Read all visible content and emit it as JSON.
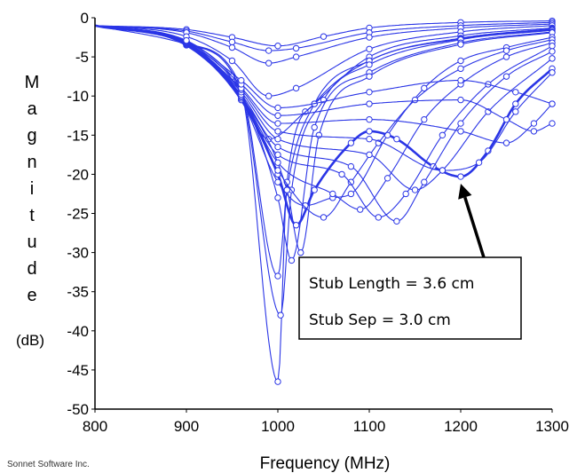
{
  "credit": "Sonnet Software Inc.",
  "colors": {
    "series": "#2a35e6",
    "axis": "#000000",
    "annotation_arrow": "#000000"
  },
  "annotation": {
    "line1": "Stub Length = 3.6 cm",
    "line2": "Stub Sep = 3.0 cm",
    "points_to": {
      "x": 1200,
      "y": -20.3
    }
  },
  "chart_data": {
    "type": "line",
    "title": "",
    "xlabel": "Frequency (MHz)",
    "ylabel": "Magnitude",
    "ylabel_unit": "(dB)",
    "xlim": [
      800,
      1300
    ],
    "ylim": [
      -50,
      0
    ],
    "xticks": [
      800,
      900,
      1000,
      1100,
      1200,
      1300
    ],
    "yticks": [
      0,
      -5,
      -10,
      -15,
      -20,
      -25,
      -30,
      -35,
      -40,
      -45,
      -50
    ],
    "grid": false,
    "legend": "none",
    "series": [
      {
        "highlight": false,
        "points": [
          [
            800,
            -1
          ],
          [
            900,
            -1.5
          ],
          [
            950,
            -2.5
          ],
          [
            1000,
            -3.6
          ],
          [
            1050,
            -2.4
          ],
          [
            1100,
            -1.3
          ],
          [
            1200,
            -0.6
          ],
          [
            1300,
            -0.4
          ]
        ]
      },
      {
        "highlight": false,
        "points": [
          [
            800,
            -1
          ],
          [
            900,
            -1.7
          ],
          [
            950,
            -3.1
          ],
          [
            990,
            -4.2
          ],
          [
            1020,
            -3.9
          ],
          [
            1100,
            -1.9
          ],
          [
            1200,
            -1
          ],
          [
            1300,
            -0.6
          ]
        ]
      },
      {
        "highlight": false,
        "points": [
          [
            800,
            -1
          ],
          [
            900,
            -1.9
          ],
          [
            950,
            -3.8
          ],
          [
            990,
            -5.8
          ],
          [
            1020,
            -5
          ],
          [
            1100,
            -2.5
          ],
          [
            1200,
            -1.3
          ],
          [
            1300,
            -0.8
          ]
        ]
      },
      {
        "highlight": false,
        "points": [
          [
            800,
            -1
          ],
          [
            900,
            -2.4
          ],
          [
            950,
            -5.5
          ],
          [
            990,
            -10
          ],
          [
            1020,
            -9
          ],
          [
            1100,
            -4
          ],
          [
            1200,
            -1.8
          ],
          [
            1300,
            -1
          ]
        ]
      },
      {
        "highlight": false,
        "points": [
          [
            800,
            -1
          ],
          [
            900,
            -3
          ],
          [
            950,
            -7.5
          ],
          [
            990,
            -15.5
          ],
          [
            1030,
            -12
          ],
          [
            1100,
            -5
          ],
          [
            1200,
            -2.3
          ],
          [
            1300,
            -1.3
          ]
        ]
      },
      {
        "highlight": false,
        "points": [
          [
            800,
            -1
          ],
          [
            900,
            -3.2
          ],
          [
            960,
            -9
          ],
          [
            1000,
            -33
          ],
          [
            1010,
            -22
          ],
          [
            1040,
            -11
          ],
          [
            1100,
            -5.5
          ],
          [
            1200,
            -2.6
          ],
          [
            1300,
            -1.4
          ]
        ]
      },
      {
        "highlight": false,
        "points": [
          [
            800,
            -1
          ],
          [
            900,
            -3.4
          ],
          [
            960,
            -9.5
          ],
          [
            1000,
            -46.5
          ],
          [
            1010,
            -21
          ],
          [
            1040,
            -11
          ],
          [
            1100,
            -5.5
          ],
          [
            1200,
            -2.7
          ],
          [
            1300,
            -1.5
          ]
        ]
      },
      {
        "highlight": false,
        "points": [
          [
            800,
            -1
          ],
          [
            900,
            -3.3
          ],
          [
            960,
            -9.5
          ],
          [
            1003,
            -38
          ],
          [
            1015,
            -22
          ],
          [
            1050,
            -10.5
          ],
          [
            1100,
            -6
          ],
          [
            1200,
            -2.8
          ],
          [
            1300,
            -1.6
          ]
        ]
      },
      {
        "highlight": false,
        "points": [
          [
            800,
            -1
          ],
          [
            900,
            -3.3
          ],
          [
            960,
            -9.8
          ],
          [
            1000,
            -23
          ],
          [
            1015,
            -31
          ],
          [
            1040,
            -14
          ],
          [
            1100,
            -7
          ],
          [
            1200,
            -3.2
          ],
          [
            1300,
            -1.8
          ]
        ]
      },
      {
        "highlight": false,
        "points": [
          [
            800,
            -1
          ],
          [
            900,
            -3.4
          ],
          [
            960,
            -10
          ],
          [
            1010,
            -22
          ],
          [
            1025,
            -30
          ],
          [
            1045,
            -15
          ],
          [
            1100,
            -7.5
          ],
          [
            1200,
            -3.4
          ],
          [
            1300,
            -1.9
          ]
        ]
      },
      {
        "highlight": true,
        "points": [
          [
            800,
            -1
          ],
          [
            900,
            -3.5
          ],
          [
            960,
            -10.5
          ],
          [
            1000,
            -20
          ],
          [
            1020,
            -26.5
          ],
          [
            1040,
            -22
          ],
          [
            1080,
            -16
          ],
          [
            1100,
            -14.5
          ],
          [
            1130,
            -15.5
          ],
          [
            1170,
            -19
          ],
          [
            1200,
            -20.3
          ],
          [
            1230,
            -17
          ],
          [
            1260,
            -11
          ],
          [
            1300,
            -6.5
          ]
        ]
      },
      {
        "highlight": false,
        "points": [
          [
            800,
            -1
          ],
          [
            900,
            -3.5
          ],
          [
            960,
            -10.5
          ],
          [
            1000,
            -21
          ],
          [
            1030,
            -24
          ],
          [
            1060,
            -23
          ],
          [
            1080,
            -22.5
          ],
          [
            1120,
            -15
          ],
          [
            1160,
            -9
          ],
          [
            1200,
            -5.5
          ],
          [
            1250,
            -3.8
          ],
          [
            1300,
            -2.5
          ]
        ]
      },
      {
        "highlight": false,
        "points": [
          [
            800,
            -1
          ],
          [
            900,
            -3.4
          ],
          [
            960,
            -10.3
          ],
          [
            1000,
            -19.5
          ],
          [
            1050,
            -25.5
          ],
          [
            1080,
            -21
          ],
          [
            1110,
            -16
          ],
          [
            1150,
            -10.5
          ],
          [
            1200,
            -6.5
          ],
          [
            1250,
            -4.2
          ],
          [
            1300,
            -2.8
          ]
        ]
      },
      {
        "highlight": false,
        "points": [
          [
            800,
            -1
          ],
          [
            900,
            -3.4
          ],
          [
            960,
            -10.1
          ],
          [
            1000,
            -18.5
          ],
          [
            1060,
            -22.5
          ],
          [
            1090,
            -24.5
          ],
          [
            1120,
            -20.5
          ],
          [
            1160,
            -13
          ],
          [
            1200,
            -8.5
          ],
          [
            1250,
            -5
          ],
          [
            1300,
            -3.2
          ]
        ]
      },
      {
        "highlight": false,
        "points": [
          [
            800,
            -1
          ],
          [
            900,
            -3.3
          ],
          [
            960,
            -10
          ],
          [
            1000,
            -17.5
          ],
          [
            1070,
            -20
          ],
          [
            1110,
            -25.5
          ],
          [
            1140,
            -22.5
          ],
          [
            1180,
            -15
          ],
          [
            1230,
            -8.5
          ],
          [
            1300,
            -3.6
          ]
        ]
      },
      {
        "highlight": false,
        "points": [
          [
            800,
            -1
          ],
          [
            900,
            -3.3
          ],
          [
            960,
            -9.8
          ],
          [
            1000,
            -16.5
          ],
          [
            1080,
            -19
          ],
          [
            1130,
            -26
          ],
          [
            1160,
            -21
          ],
          [
            1200,
            -13.5
          ],
          [
            1250,
            -7.5
          ],
          [
            1300,
            -4.3
          ]
        ]
      },
      {
        "highlight": false,
        "points": [
          [
            800,
            -1
          ],
          [
            900,
            -3.2
          ],
          [
            960,
            -9.5
          ],
          [
            1000,
            -15.5
          ],
          [
            1100,
            -17.5
          ],
          [
            1150,
            -22
          ],
          [
            1180,
            -19.5
          ],
          [
            1230,
            -12
          ],
          [
            1300,
            -5.2
          ]
        ]
      },
      {
        "highlight": false,
        "points": [
          [
            800,
            -1
          ],
          [
            900,
            -3.2
          ],
          [
            960,
            -9.2
          ],
          [
            1000,
            -14.5
          ],
          [
            1100,
            -15.5
          ],
          [
            1180,
            -19.5
          ],
          [
            1220,
            -18.5
          ],
          [
            1260,
            -12
          ],
          [
            1300,
            -7
          ]
        ]
      },
      {
        "highlight": false,
        "points": [
          [
            800,
            -1
          ],
          [
            900,
            -3.1
          ],
          [
            960,
            -9
          ],
          [
            1000,
            -13.5
          ],
          [
            1100,
            -13
          ],
          [
            1200,
            -14.5
          ],
          [
            1250,
            -16
          ],
          [
            1280,
            -13.5
          ],
          [
            1300,
            -11
          ]
        ]
      },
      {
        "highlight": false,
        "points": [
          [
            800,
            -1
          ],
          [
            900,
            -3
          ],
          [
            960,
            -8.5
          ],
          [
            1000,
            -12.5
          ],
          [
            1100,
            -11
          ],
          [
            1200,
            -10.5
          ],
          [
            1250,
            -13
          ],
          [
            1280,
            -14.5
          ],
          [
            1300,
            -13.5
          ]
        ]
      },
      {
        "highlight": false,
        "points": [
          [
            800,
            -1
          ],
          [
            900,
            -2.9
          ],
          [
            960,
            -8
          ],
          [
            1000,
            -11.5
          ],
          [
            1100,
            -9.5
          ],
          [
            1200,
            -8
          ],
          [
            1260,
            -9.5
          ],
          [
            1300,
            -11
          ]
        ]
      }
    ]
  }
}
